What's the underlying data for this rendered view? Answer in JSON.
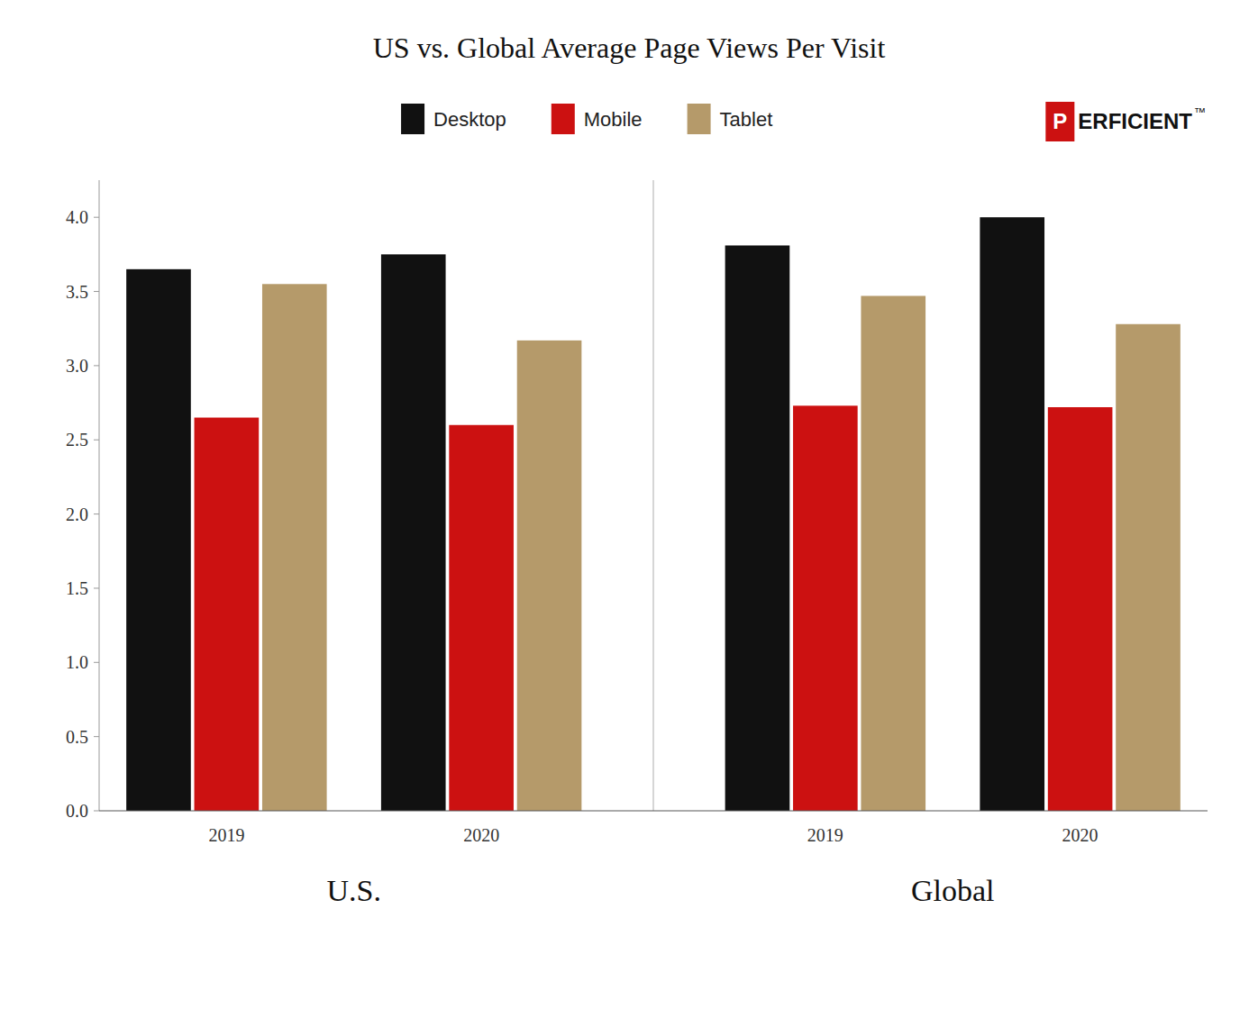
{
  "chart_data": {
    "type": "bar",
    "title": "US vs. Global Average Page Views Per Visit",
    "categories": [
      "2019",
      "2020",
      "2019",
      "2020"
    ],
    "series": [
      {
        "name": "Desktop",
        "color": "#111111",
        "values": [
          3.65,
          3.75,
          3.81,
          4.0
        ]
      },
      {
        "name": "Mobile",
        "color": "#cc1111",
        "values": [
          2.65,
          2.6,
          2.73,
          2.72
        ]
      },
      {
        "name": "Tablet",
        "color": "#b59a6a",
        "values": [
          3.55,
          3.17,
          3.47,
          3.28
        ]
      }
    ],
    "ylim": [
      0,
      4.25
    ],
    "yticks": [
      {
        "value": 0,
        "label": "0.0"
      },
      0.5,
      {
        "value": 1,
        "label": "1.0"
      },
      1.5,
      {
        "value": 2,
        "label": "2.0"
      },
      2.5,
      {
        "value": 3,
        "label": "3.0"
      },
      3.5,
      {
        "value": 4,
        "label": "4.0"
      }
    ],
    "grid": false,
    "legend": "top",
    "annotations": [
      {
        "text": "U.S."
      },
      {
        "text": "Global"
      },
      {
        "text": "P",
        "color": "#cc1111"
      },
      {
        "text": "ERFICIENT",
        "color": "#111111"
      },
      {
        "text": "™",
        "color": "#111111"
      }
    ]
  }
}
